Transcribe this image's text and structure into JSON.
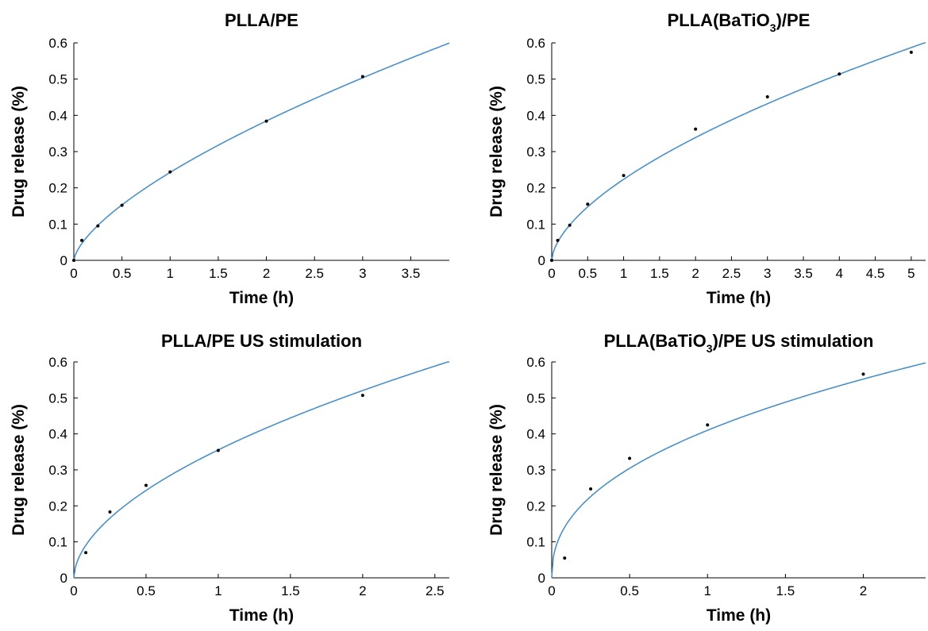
{
  "chart_data": [
    {
      "type": "scatter",
      "title": "PLLA/PE",
      "title_sub": "",
      "title_suffix": "",
      "xlabel": "Time (h)",
      "ylabel": "Drug release (%)",
      "xlim": [
        0,
        3.9
      ],
      "ylim": [
        0,
        0.6
      ],
      "xticks": [
        0,
        0.5,
        1,
        1.5,
        2,
        2.5,
        3,
        3.5
      ],
      "xtick_labels": [
        "0",
        "0.5",
        "1",
        "1.5",
        "2",
        "2.5",
        "3",
        "3.5"
      ],
      "yticks": [
        0,
        0.1,
        0.2,
        0.3,
        0.4,
        0.5,
        0.6
      ],
      "ytick_labels": [
        "0",
        "0.1",
        "0.2",
        "0.3",
        "0.4",
        "0.5",
        "0.6"
      ],
      "grid": false,
      "fit_color": "#4a90c8",
      "fit_k": 0.2425,
      "fit_n": 0.665,
      "points": [
        [
          0,
          0
        ],
        [
          0.083,
          0.055
        ],
        [
          0.25,
          0.095
        ],
        [
          0.5,
          0.152
        ],
        [
          1,
          0.244
        ],
        [
          2,
          0.384
        ],
        [
          3,
          0.507
        ]
      ]
    },
    {
      "type": "scatter",
      "title": "PLLA(BaTiO",
      "title_sub": "3",
      "title_suffix": ")/PE",
      "xlabel": "Time (h)",
      "ylabel": "Drug release (%)",
      "xlim": [
        0,
        5.2
      ],
      "ylim": [
        0,
        0.6
      ],
      "xticks": [
        0,
        0.5,
        1,
        1.5,
        2,
        2.5,
        3,
        3.5,
        4,
        4.5,
        5
      ],
      "xtick_labels": [
        "0",
        "0.5",
        "1",
        "1.5",
        "2",
        "2.5",
        "3",
        "3.5",
        "4",
        "4.5",
        "5"
      ],
      "yticks": [
        0,
        0.1,
        0.2,
        0.3,
        0.4,
        0.5,
        0.6
      ],
      "ytick_labels": [
        "0",
        "0.1",
        "0.2",
        "0.3",
        "0.4",
        "0.5",
        "0.6"
      ],
      "grid": false,
      "fit_color": "#4a90c8",
      "fit_k": 0.2235,
      "fit_n": 0.6,
      "points": [
        [
          0,
          0
        ],
        [
          0.083,
          0.055
        ],
        [
          0.25,
          0.097
        ],
        [
          0.5,
          0.155
        ],
        [
          1,
          0.234
        ],
        [
          2,
          0.362
        ],
        [
          3,
          0.451
        ],
        [
          4,
          0.514
        ],
        [
          5,
          0.574
        ]
      ]
    },
    {
      "type": "scatter",
      "title": "PLLA/PE US stimulation",
      "title_sub": "",
      "title_suffix": "",
      "xlabel": "Time (h)",
      "ylabel": "Drug release (%)",
      "xlim": [
        0,
        2.6
      ],
      "ylim": [
        0,
        0.6
      ],
      "xticks": [
        0,
        0.5,
        1,
        1.5,
        2,
        2.5
      ],
      "xtick_labels": [
        "0",
        "0.5",
        "1",
        "1.5",
        "2",
        "2.5"
      ],
      "yticks": [
        0,
        0.1,
        0.2,
        0.3,
        0.4,
        0.5,
        0.6
      ],
      "ytick_labels": [
        "0",
        "0.1",
        "0.2",
        "0.3",
        "0.4",
        "0.5",
        "0.6"
      ],
      "grid": false,
      "fit_color": "#4a90c8",
      "fit_k": 0.3555,
      "fit_n": 0.55,
      "points": [
        [
          0.083,
          0.07
        ],
        [
          0.25,
          0.183
        ],
        [
          0.5,
          0.257
        ],
        [
          1,
          0.354
        ],
        [
          2,
          0.507
        ]
      ]
    },
    {
      "type": "scatter",
      "title": "PLLA(BaTiO",
      "title_sub": "3",
      "title_suffix": ")/PE US stimulation",
      "xlabel": "Time (h)",
      "ylabel": "Drug release (%)",
      "xlim": [
        0,
        2.4
      ],
      "ylim": [
        0,
        0.6
      ],
      "xticks": [
        0,
        0.5,
        1,
        1.5,
        2
      ],
      "xtick_labels": [
        "0",
        "0.5",
        "1",
        "1.5",
        "2"
      ],
      "yticks": [
        0,
        0.1,
        0.2,
        0.3,
        0.4,
        0.5,
        0.6
      ],
      "ytick_labels": [
        "0",
        "0.1",
        "0.2",
        "0.3",
        "0.4",
        "0.5",
        "0.6"
      ],
      "grid": false,
      "fit_color": "#4a90c8",
      "fit_k": 0.41,
      "fit_n": 0.43,
      "points": [
        [
          0.083,
          0.055
        ],
        [
          0.25,
          0.247
        ],
        [
          0.5,
          0.332
        ],
        [
          1,
          0.425
        ],
        [
          2,
          0.566
        ]
      ]
    }
  ]
}
